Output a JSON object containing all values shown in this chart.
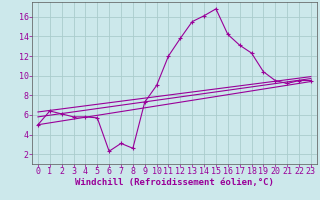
{
  "background_color": "#cce8eb",
  "grid_color": "#aacccc",
  "line_color": "#990099",
  "marker": "+",
  "xlabel": "Windchill (Refroidissement éolien,°C)",
  "xlabel_fontsize": 6.5,
  "tick_fontsize": 6.0,
  "xlim": [
    -0.5,
    23.5
  ],
  "ylim": [
    1.0,
    17.5
  ],
  "yticks": [
    2,
    4,
    6,
    8,
    10,
    12,
    14,
    16
  ],
  "xticks": [
    0,
    1,
    2,
    3,
    4,
    5,
    6,
    7,
    8,
    9,
    10,
    11,
    12,
    13,
    14,
    15,
    16,
    17,
    18,
    19,
    20,
    21,
    22,
    23
  ],
  "curve1_x": [
    0,
    1,
    2,
    3,
    4,
    5,
    6,
    7,
    8,
    9,
    10,
    11,
    12,
    13,
    14,
    15,
    16,
    17,
    18,
    19,
    20,
    21,
    22,
    23
  ],
  "curve1_y": [
    5.0,
    6.4,
    6.1,
    5.8,
    5.8,
    5.7,
    2.3,
    3.1,
    2.6,
    7.3,
    9.0,
    12.0,
    13.8,
    15.5,
    16.1,
    16.8,
    14.2,
    13.1,
    12.3,
    10.4,
    9.5,
    9.2,
    9.5,
    9.5
  ],
  "line1_x": [
    0,
    23
  ],
  "line1_y": [
    5.0,
    9.4
  ],
  "line2_x": [
    0,
    23
  ],
  "line2_y": [
    5.8,
    9.7
  ],
  "line3_x": [
    0,
    23
  ],
  "line3_y": [
    6.3,
    9.9
  ]
}
